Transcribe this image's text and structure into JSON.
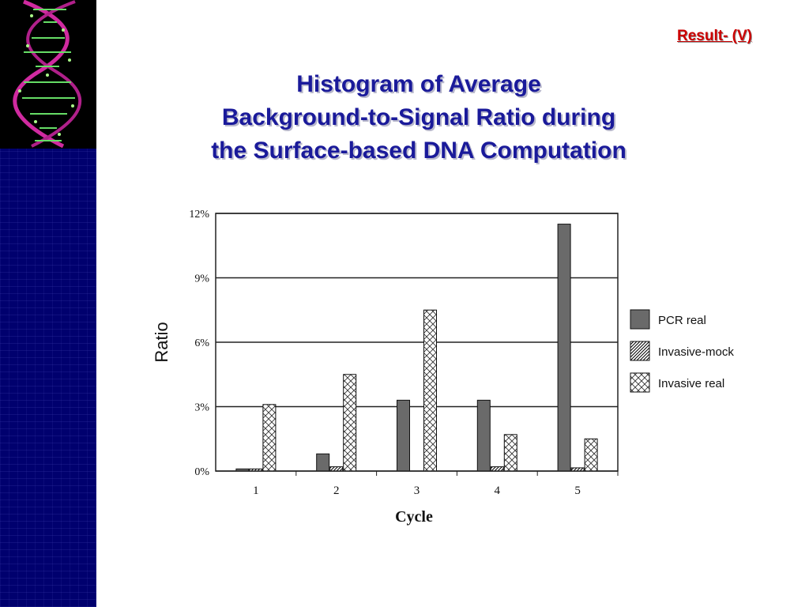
{
  "slide": {
    "result_label": "Result- (V)",
    "title_lines": [
      "Histogram of Average",
      "Background-to-Signal Ratio during",
      "the Surface-based DNA Computation"
    ]
  },
  "colors": {
    "sidebar": "#00006e",
    "title": "#1a1a9a",
    "result_link": "#cc0000",
    "pcr_bar": "#666666"
  },
  "chart_data": {
    "type": "bar",
    "categories": [
      "1",
      "2",
      "3",
      "4",
      "5"
    ],
    "series": [
      {
        "name": "PCR real",
        "values": [
          0.1,
          0.8,
          3.3,
          3.3,
          11.5
        ],
        "fill": "solid"
      },
      {
        "name": "Invasive-mock",
        "values": [
          0.1,
          0.2,
          0.0,
          0.2,
          0.15
        ],
        "fill": "hatch"
      },
      {
        "name": "Invasive real",
        "values": [
          3.1,
          4.5,
          7.5,
          1.7,
          1.5
        ],
        "fill": "cross"
      }
    ],
    "xlabel": "Cycle",
    "ylabel": "Ratio",
    "ylim": [
      0,
      12
    ],
    "yticks": [
      "0%",
      "3%",
      "6%",
      "9%",
      "12%"
    ],
    "ytick_values": [
      0,
      3,
      6,
      9,
      12
    ],
    "grid": true,
    "legend_position": "right"
  }
}
